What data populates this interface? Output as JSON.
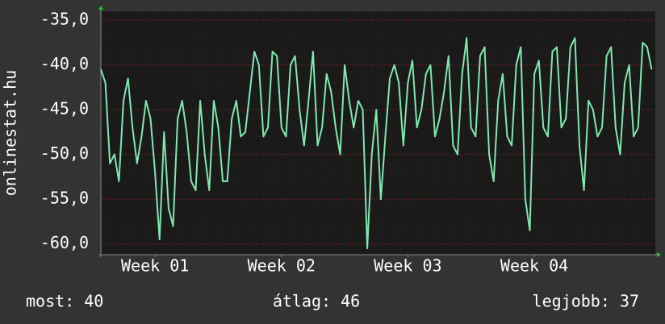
{
  "chart_data": {
    "type": "line",
    "ylabel": "onlinestat.hu",
    "annotations": [
      "most: 40",
      "átlag: 46",
      "legjobb: 37"
    ],
    "xlim": [
      0,
      30.7
    ],
    "xticks": [
      {
        "value": 3,
        "label": "Week 01"
      },
      {
        "value": 10,
        "label": "Week 02"
      },
      {
        "value": 17,
        "label": "Week 03"
      },
      {
        "value": 24,
        "label": "Week 04"
      }
    ],
    "ylim": [
      -61.2,
      -34.0
    ],
    "yticks": [
      {
        "value": -60,
        "label": "-60,0"
      },
      {
        "value": -55,
        "label": "-55,0"
      },
      {
        "value": -50,
        "label": "-50,0"
      },
      {
        "value": -45,
        "label": "-45,0"
      },
      {
        "value": -40,
        "label": "-40,0"
      },
      {
        "value": -35,
        "label": "-35,0"
      }
    ],
    "grid": true,
    "series": [
      {
        "color": "#7fe8b0",
        "x": [
          0,
          0.25,
          0.5,
          0.75,
          1,
          1.25,
          1.5,
          1.75,
          2,
          2.25,
          2.5,
          2.75,
          3,
          3.25,
          3.5,
          3.75,
          4,
          4.25,
          4.5,
          4.75,
          5,
          5.25,
          5.5,
          5.75,
          6,
          6.25,
          6.5,
          6.75,
          7,
          7.25,
          7.5,
          7.75,
          8,
          8.25,
          8.5,
          8.75,
          9,
          9.25,
          9.5,
          9.75,
          10,
          10.25,
          10.5,
          10.75,
          11,
          11.25,
          11.5,
          11.75,
          12,
          12.25,
          12.5,
          12.75,
          13,
          13.25,
          13.5,
          13.75,
          14,
          14.25,
          14.5,
          14.75,
          15,
          15.25,
          15.5,
          15.75,
          16,
          16.25,
          16.5,
          16.75,
          17,
          17.25,
          17.5,
          17.75,
          18,
          18.25,
          18.5,
          18.75,
          19,
          19.25,
          19.5,
          19.75,
          20,
          20.25,
          20.5,
          20.75,
          21,
          21.25,
          21.5,
          21.75,
          22,
          22.25,
          22.5,
          22.75,
          23,
          23.25,
          23.5,
          23.75,
          24,
          24.25,
          24.5,
          24.75,
          25,
          25.25,
          25.5,
          25.75,
          26,
          26.25,
          26.5,
          26.75,
          27,
          27.25,
          27.5,
          27.75,
          28,
          28.25,
          28.5,
          28.75,
          29,
          29.25,
          29.5,
          29.75,
          30,
          30.25,
          30.5
        ],
        "values": [
          -40.5,
          -42,
          -51,
          -50,
          -53,
          -44,
          -41.5,
          -47,
          -51,
          -48,
          -44,
          -46,
          -52,
          -59.5,
          -47.5,
          -56,
          -58,
          -46,
          -44,
          -47.5,
          -53,
          -54,
          -44,
          -50,
          -54,
          -44,
          -47,
          -53,
          -53,
          -46,
          -44,
          -48,
          -47.5,
          -43,
          -38.5,
          -40,
          -48,
          -47,
          -38.5,
          -39,
          -47,
          -48,
          -40,
          -39,
          -45,
          -49,
          -44,
          -38.5,
          -49,
          -47,
          -41,
          -43,
          -47,
          -50,
          -40,
          -44,
          -47,
          -44,
          -45,
          -60.5,
          -50,
          -45,
          -55,
          -48,
          -41.5,
          -40,
          -42,
          -49,
          -42,
          -39.5,
          -47,
          -45,
          -41,
          -40,
          -48,
          -46,
          -43,
          -39,
          -49,
          -50,
          -41,
          -37,
          -47,
          -48,
          -39,
          -38,
          -50,
          -53,
          -44,
          -41,
          -48,
          -49,
          -40,
          -38,
          -55,
          -58.5,
          -41,
          -39.5,
          -47,
          -48,
          -38.5,
          -38,
          -47,
          -46,
          -38,
          -37,
          -49,
          -54,
          -44,
          -45,
          -48,
          -47,
          -39,
          -38,
          -47,
          -50,
          -42,
          -40,
          -48,
          -47,
          -37.5,
          -38,
          -40.5
        ]
      }
    ]
  }
}
